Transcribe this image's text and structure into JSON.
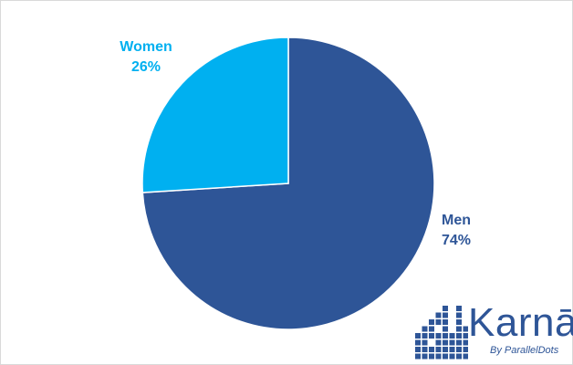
{
  "chart_data": {
    "type": "pie",
    "categories": [
      "Men",
      "Women"
    ],
    "values": [
      74,
      26
    ],
    "value_labels": [
      "74%",
      "26%"
    ],
    "colors": [
      "#2E5597",
      "#00B0F0"
    ],
    "start_angle_note": "Women slice starts at 12 o'clock going counter-clockwise",
    "title": "",
    "legend": "none"
  },
  "labels": {
    "men": {
      "name": "Men",
      "value": "74%",
      "color": "#2E5597"
    },
    "women": {
      "name": "Women",
      "value": "26%",
      "color": "#00B0F0"
    }
  },
  "logo": {
    "wordmark": "Karnā",
    "tagline": "By ParallelDots",
    "color": "#2E5597"
  }
}
